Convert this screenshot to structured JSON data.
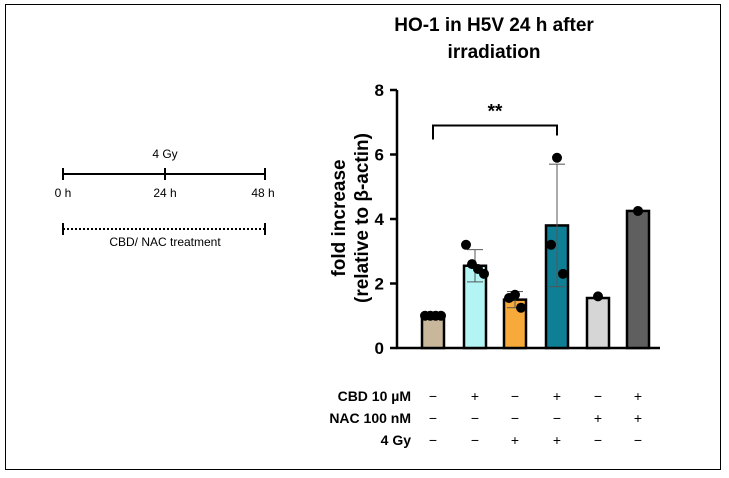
{
  "chart_data": {
    "type": "bar",
    "title": "HO-1 in H5V 24 h after\nirradiation",
    "ylabel_line1": "fold increase",
    "ylabel_line2": "(relative to β-actin)",
    "ylim": [
      0,
      8
    ],
    "yticks": [
      "0",
      "2",
      "4",
      "6",
      "8"
    ],
    "groups": [
      {
        "cbd": "−",
        "nac": "−",
        "gy": "−",
        "mean": 1.0,
        "sd": 0.05,
        "color": "#c8b79b",
        "points": [
          1.0,
          1.0,
          1.0,
          1.0
        ]
      },
      {
        "cbd": "+",
        "nac": "−",
        "gy": "−",
        "mean": 2.55,
        "sd": 0.5,
        "color": "#b3f5f5",
        "points": [
          3.2,
          2.6,
          2.45,
          2.3
        ]
      },
      {
        "cbd": "−",
        "nac": "−",
        "gy": "+",
        "mean": 1.5,
        "sd": 0.25,
        "color": "#f7aa3a",
        "points": [
          1.65,
          1.55,
          1.25
        ]
      },
      {
        "cbd": "+",
        "nac": "−",
        "gy": "+",
        "mean": 3.8,
        "sd": 1.9,
        "color": "#0f7f96",
        "points": [
          5.9,
          3.2,
          2.3
        ]
      },
      {
        "cbd": "−",
        "nac": "+",
        "gy": "−",
        "mean": 1.55,
        "sd": 0,
        "color": "#d6d6d6",
        "points": [
          1.6
        ]
      },
      {
        "cbd": "+",
        "nac": "+",
        "gy": "−",
        "mean": 4.25,
        "sd": 0,
        "color": "#5f5f5f",
        "points": [
          4.25
        ]
      }
    ],
    "significance": {
      "from": 0,
      "to": 3,
      "label": "**",
      "y": 6.9
    },
    "conditions": [
      {
        "key": "cbd",
        "label": "CBD 10 µM"
      },
      {
        "key": "nac",
        "label": "NAC 100 nM"
      },
      {
        "key": "gy",
        "label": "4 Gy"
      }
    ]
  },
  "timeline": {
    "label_dose": "4 Gy",
    "ticks": [
      "0 h",
      "24 h",
      "48 h"
    ],
    "treatment": "CBD/ NAC treatment"
  }
}
